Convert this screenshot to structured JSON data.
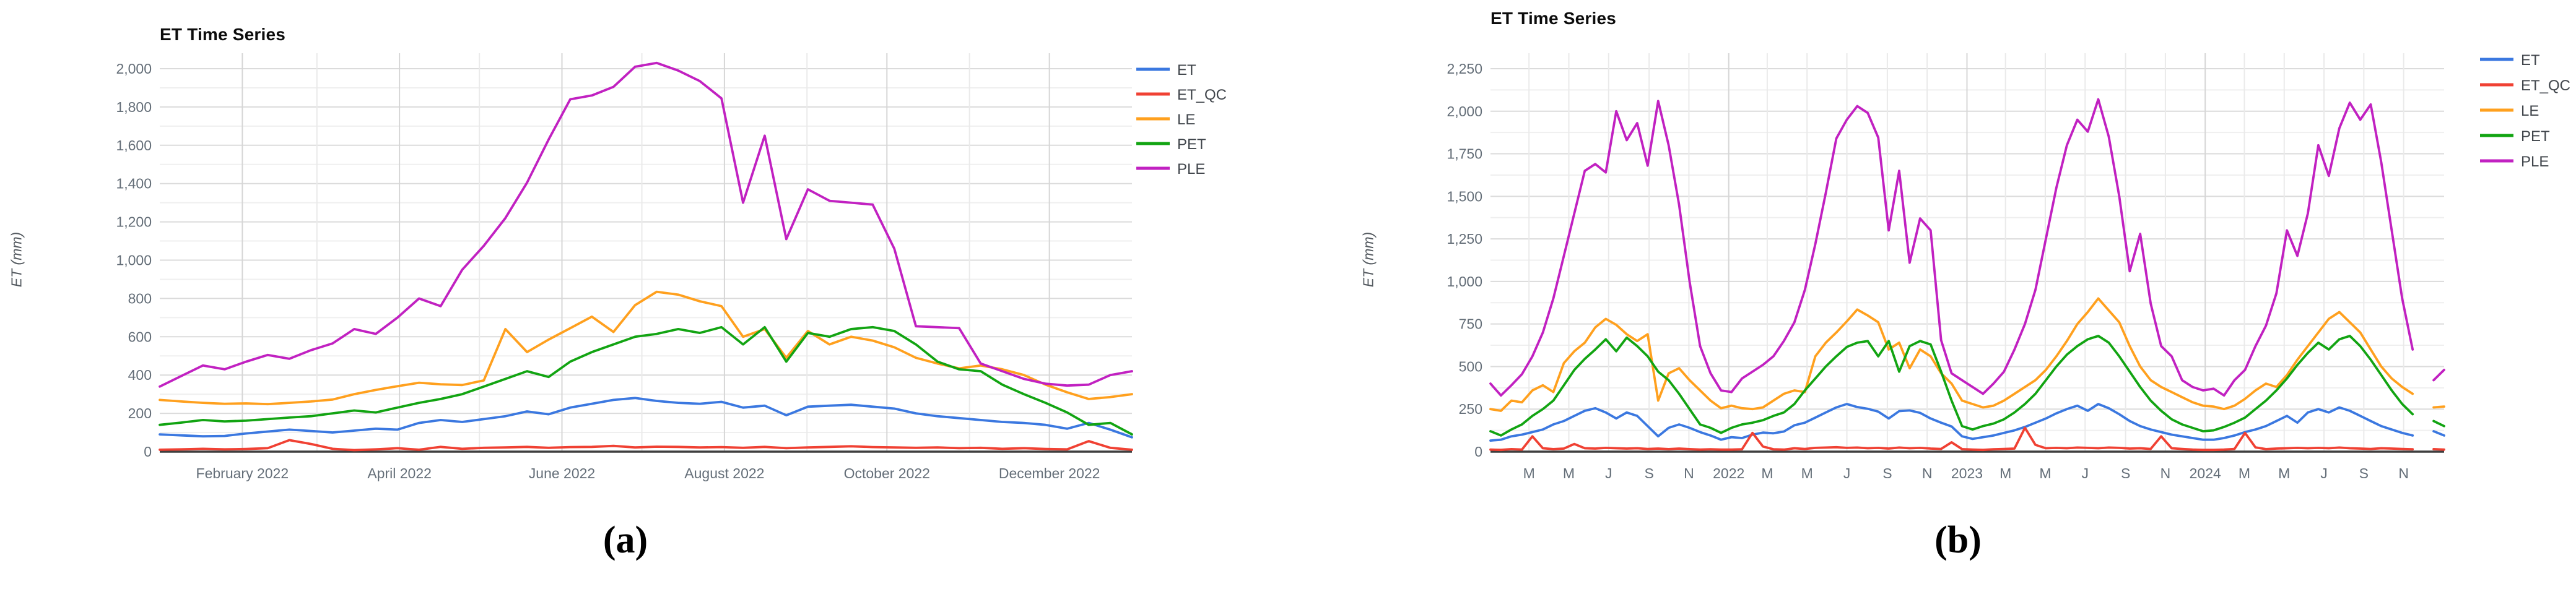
{
  "page": {
    "background": "#ffffff"
  },
  "chart_data": [
    {
      "panel": "a",
      "type": "line",
      "title": "ET Time Series",
      "ylabel": "ET (mm)",
      "caption": "(a)",
      "grid": true,
      "legend_position": "right",
      "ylim": [
        0,
        2080
      ],
      "y_max_tick": 2000,
      "y_tick_step": 200,
      "y_minor_step": 100,
      "y_tick_labels": [
        "0",
        "200",
        "400",
        "600",
        "800",
        "1,000",
        "1,200",
        "1,400",
        "1,600",
        "1,800",
        "2,000"
      ],
      "x_total_days": 365,
      "x_ticks": [
        {
          "label": "February 2022",
          "day": 31,
          "major": true
        },
        {
          "label": "",
          "day": 59,
          "major": false
        },
        {
          "label": "April 2022",
          "day": 90,
          "major": true
        },
        {
          "label": "",
          "day": 120,
          "major": false
        },
        {
          "label": "June 2022",
          "day": 151,
          "major": true
        },
        {
          "label": "",
          "day": 181,
          "major": false
        },
        {
          "label": "August 2022",
          "day": 212,
          "major": true
        },
        {
          "label": "",
          "day": 243,
          "major": false
        },
        {
          "label": "October 2022",
          "day": 273,
          "major": true
        },
        {
          "label": "",
          "day": 304,
          "major": false
        },
        {
          "label": "December 2022",
          "day": 334,
          "major": true
        }
      ],
      "series": [
        {
          "name": "ET",
          "color": "#3B78E0",
          "values": [
            90,
            85,
            80,
            82,
            95,
            105,
            115,
            108,
            100,
            110,
            120,
            115,
            150,
            165,
            155,
            170,
            185,
            210,
            195,
            230,
            250,
            270,
            280,
            265,
            255,
            250,
            260,
            230,
            240,
            190,
            235,
            240,
            245,
            235,
            225,
            200,
            185,
            175,
            165,
            155,
            150,
            140,
            120,
            150,
            115,
            75
          ]
        },
        {
          "name": "ET_QC",
          "color": "#F04133",
          "values": [
            10,
            12,
            15,
            12,
            14,
            18,
            60,
            40,
            15,
            8,
            12,
            18,
            10,
            25,
            15,
            20,
            22,
            25,
            20,
            24,
            25,
            30,
            22,
            26,
            25,
            22,
            24,
            20,
            25,
            18,
            22,
            25,
            28,
            24,
            22,
            20,
            22,
            18,
            20,
            15,
            18,
            14,
            12,
            55,
            20,
            10
          ]
        },
        {
          "name": "LE",
          "color": "#FFA01E",
          "values": [
            270,
            262,
            255,
            250,
            252,
            248,
            255,
            262,
            272,
            300,
            322,
            342,
            360,
            352,
            348,
            372,
            640,
            520,
            585,
            645,
            705,
            625,
            765,
            835,
            820,
            785,
            760,
            600,
            640,
            490,
            630,
            560,
            600,
            580,
            545,
            490,
            460,
            435,
            450,
            430,
            400,
            350,
            310,
            275,
            285,
            300
          ]
        },
        {
          "name": "PET",
          "color": "#12A412",
          "values": [
            140,
            152,
            165,
            158,
            162,
            170,
            178,
            185,
            200,
            215,
            205,
            230,
            255,
            275,
            300,
            340,
            380,
            420,
            390,
            470,
            520,
            560,
            600,
            615,
            640,
            620,
            650,
            560,
            650,
            470,
            620,
            600,
            640,
            650,
            630,
            560,
            470,
            430,
            420,
            350,
            300,
            255,
            205,
            140,
            150,
            90
          ]
        },
        {
          "name": "PLE",
          "color": "#C121C1",
          "values": [
            340,
            395,
            450,
            430,
            470,
            505,
            485,
            530,
            565,
            640,
            615,
            700,
            800,
            760,
            950,
            1075,
            1220,
            1405,
            1630,
            1840,
            1860,
            1905,
            2010,
            2030,
            1990,
            1935,
            1845,
            1300,
            1650,
            1110,
            1370,
            1310,
            1300,
            1290,
            1060,
            655,
            650,
            645,
            460,
            420,
            380,
            355,
            345,
            350,
            400,
            420
          ]
        }
      ]
    },
    {
      "panel": "b",
      "type": "line",
      "title": "ET Time Series",
      "ylabel": "ET (mm)",
      "caption": "(b)",
      "grid": true,
      "legend_position": "right",
      "ylim": [
        0,
        2250
      ],
      "y_max_tick": 2250,
      "y_tick_step": 250,
      "y_minor_step": 125,
      "y_tick_labels": [
        "0",
        "250",
        "500",
        "750",
        "1,000",
        "1,250",
        "1,500",
        "1,750",
        "2,000",
        "2,250"
      ],
      "x_total_days": 1461,
      "x_ticks": [
        {
          "label": "M",
          "day": 59,
          "major": false
        },
        {
          "label": "M",
          "day": 120,
          "major": false
        },
        {
          "label": "J",
          "day": 181,
          "major": false
        },
        {
          "label": "S",
          "day": 243,
          "major": false
        },
        {
          "label": "N",
          "day": 304,
          "major": false
        },
        {
          "label": "2022",
          "day": 365,
          "major": true
        },
        {
          "label": "M",
          "day": 424,
          "major": false
        },
        {
          "label": "M",
          "day": 485,
          "major": false
        },
        {
          "label": "J",
          "day": 546,
          "major": false
        },
        {
          "label": "S",
          "day": 608,
          "major": false
        },
        {
          "label": "N",
          "day": 669,
          "major": false
        },
        {
          "label": "2023",
          "day": 730,
          "major": true
        },
        {
          "label": "M",
          "day": 789,
          "major": false
        },
        {
          "label": "M",
          "day": 850,
          "major": false
        },
        {
          "label": "J",
          "day": 911,
          "major": false
        },
        {
          "label": "S",
          "day": 973,
          "major": false
        },
        {
          "label": "N",
          "day": 1034,
          "major": false
        },
        {
          "label": "2024",
          "day": 1095,
          "major": true
        },
        {
          "label": "M",
          "day": 1155,
          "major": false
        },
        {
          "label": "M",
          "day": 1216,
          "major": false
        },
        {
          "label": "J",
          "day": 1277,
          "major": false
        },
        {
          "label": "S",
          "day": 1338,
          "major": false
        },
        {
          "label": "N",
          "day": 1399,
          "major": false
        }
      ],
      "series": [
        {
          "name": "ET",
          "color": "#3B78E0",
          "values": [
            65,
            70,
            90,
            100,
            115,
            130,
            160,
            180,
            210,
            240,
            255,
            230,
            195,
            230,
            210,
            150,
            90,
            140,
            160,
            140,
            115,
            95,
            70,
            85,
            80,
            100,
            112,
            108,
            118,
            155,
            170,
            200,
            230,
            260,
            280,
            262,
            252,
            235,
            195,
            238,
            242,
            228,
            195,
            170,
            148,
            90,
            75,
            85,
            95,
            110,
            125,
            145,
            170,
            195,
            225,
            250,
            270,
            240,
            280,
            255,
            220,
            180,
            150,
            130,
            115,
            100,
            90,
            80,
            70,
            70,
            80,
            95,
            115,
            130,
            150,
            180,
            210,
            170,
            230,
            250,
            230,
            260,
            240,
            210,
            180,
            150,
            130,
            110,
            95,
            null,
            120,
            95
          ]
        },
        {
          "name": "ET_QC",
          "color": "#F04133",
          "values": [
            12,
            10,
            15,
            12,
            90,
            20,
            15,
            18,
            45,
            20,
            18,
            22,
            20,
            18,
            20,
            16,
            18,
            15,
            18,
            15,
            12,
            14,
            12,
            12,
            14,
            110,
            30,
            14,
            12,
            20,
            16,
            22,
            24,
            26,
            22,
            24,
            20,
            22,
            18,
            24,
            20,
            22,
            18,
            16,
            55,
            15,
            12,
            10,
            14,
            16,
            18,
            140,
            40,
            20,
            22,
            20,
            24,
            22,
            20,
            24,
            22,
            18,
            20,
            16,
            90,
            20,
            16,
            12,
            10,
            10,
            12,
            16,
            110,
            25,
            15,
            18,
            20,
            22,
            20,
            22,
            20,
            24,
            20,
            18,
            16,
            20,
            18,
            16,
            14,
            null,
            15,
            12
          ]
        },
        {
          "name": "LE",
          "color": "#FFA01E",
          "values": [
            250,
            240,
            300,
            290,
            360,
            390,
            350,
            520,
            590,
            640,
            730,
            780,
            745,
            690,
            650,
            690,
            300,
            460,
            490,
            420,
            360,
            300,
            255,
            270,
            255,
            250,
            260,
            300,
            340,
            360,
            350,
            560,
            640,
            700,
            765,
            835,
            800,
            760,
            600,
            640,
            490,
            600,
            560,
            460,
            400,
            300,
            280,
            260,
            270,
            300,
            340,
            380,
            420,
            480,
            560,
            650,
            750,
            820,
            900,
            830,
            760,
            620,
            500,
            420,
            380,
            350,
            320,
            290,
            270,
            265,
            250,
            270,
            310,
            360,
            400,
            380,
            450,
            540,
            620,
            700,
            780,
            820,
            760,
            700,
            600,
            500,
            430,
            380,
            340,
            null,
            260,
            265
          ]
        },
        {
          "name": "PET",
          "color": "#12A412",
          "values": [
            120,
            95,
            130,
            160,
            210,
            250,
            300,
            390,
            480,
            545,
            600,
            660,
            590,
            670,
            620,
            560,
            470,
            420,
            340,
            250,
            160,
            140,
            110,
            140,
            160,
            170,
            185,
            210,
            230,
            280,
            360,
            430,
            500,
            560,
            615,
            640,
            650,
            560,
            650,
            470,
            620,
            650,
            630,
            470,
            300,
            150,
            130,
            150,
            165,
            190,
            230,
            280,
            340,
            420,
            500,
            570,
            620,
            660,
            680,
            640,
            560,
            470,
            380,
            300,
            240,
            190,
            160,
            140,
            120,
            125,
            145,
            170,
            200,
            250,
            300,
            360,
            430,
            510,
            580,
            640,
            600,
            660,
            680,
            620,
            540,
            450,
            360,
            280,
            220,
            null,
            180,
            150
          ]
        },
        {
          "name": "PLE",
          "color": "#C121C1",
          "values": [
            400,
            330,
            390,
            455,
            560,
            700,
            900,
            1150,
            1400,
            1650,
            1690,
            1640,
            2000,
            1830,
            1930,
            1680,
            2060,
            1800,
            1450,
            1000,
            620,
            460,
            360,
            350,
            430,
            470,
            510,
            560,
            650,
            760,
            950,
            1220,
            1520,
            1840,
            1950,
            2030,
            1990,
            1845,
            1300,
            1650,
            1110,
            1370,
            1300,
            655,
            460,
            420,
            380,
            340,
            400,
            470,
            600,
            750,
            950,
            1250,
            1550,
            1800,
            1950,
            1880,
            2070,
            1850,
            1500,
            1060,
            1280,
            870,
            620,
            560,
            420,
            380,
            360,
            370,
            330,
            420,
            480,
            620,
            740,
            930,
            1300,
            1150,
            1400,
            1800,
            1620,
            1900,
            2050,
            1950,
            2040,
            1700,
            1300,
            900,
            600,
            null,
            420,
            480
          ]
        }
      ]
    }
  ]
}
